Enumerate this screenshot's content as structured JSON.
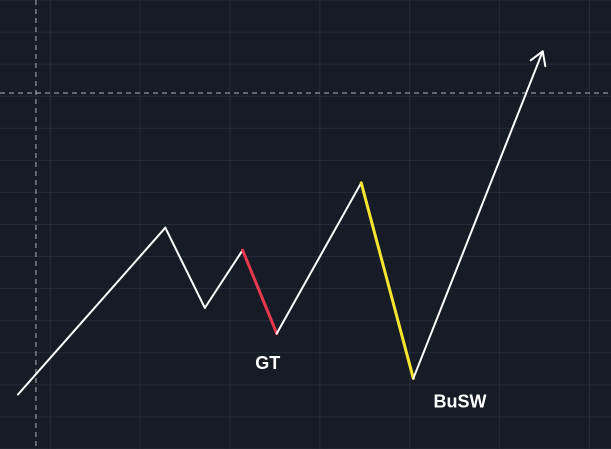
{
  "chart_data": {
    "type": "line",
    "title": "",
    "xlabel": "",
    "ylabel": "",
    "xlim": [
      0,
      17
    ],
    "ylim": [
      0,
      14
    ],
    "grid": true,
    "path": {
      "color": "#ffffff",
      "points": [
        {
          "x": 0.5,
          "y": 1.7
        },
        {
          "x": 4.6,
          "y": 6.9
        },
        {
          "x": 5.7,
          "y": 4.4
        },
        {
          "x": 6.75,
          "y": 6.2
        },
        {
          "x": 7.7,
          "y": 3.6
        },
        {
          "x": 10.05,
          "y": 8.3
        },
        {
          "x": 11.5,
          "y": 2.2
        },
        {
          "x": 15.1,
          "y": 12.4
        }
      ]
    },
    "highlights": [
      {
        "from": 3,
        "to": 4,
        "color": "#e8384f"
      },
      {
        "from": 5,
        "to": 6,
        "color": "#f5e52f"
      }
    ],
    "annotations": [
      {
        "text": "GT",
        "x": 7.45,
        "y": 2.5
      },
      {
        "text": "BuSW",
        "x": 12.8,
        "y": 1.3
      }
    ],
    "crosshair": {
      "x": 1.0,
      "y": 11.1
    }
  }
}
